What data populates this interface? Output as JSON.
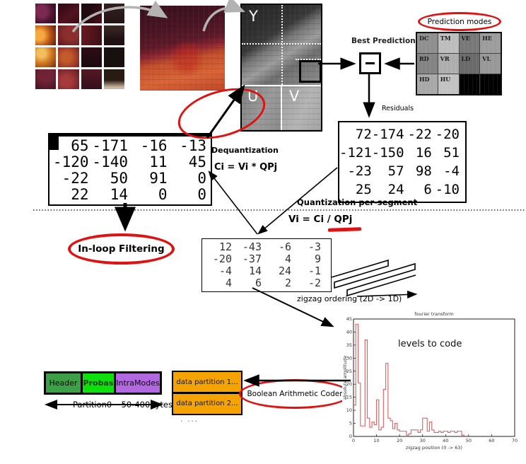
{
  "yuv": {
    "y_label": "Y",
    "u_label": "U",
    "v_label": "V"
  },
  "prediction": {
    "best_label": "Best Prediction???",
    "modes_title": "Prediction modes",
    "modes": [
      {
        "label": "DC",
        "shade": "#8f8f8f"
      },
      {
        "label": "TM",
        "shade": "#bdbdbd"
      },
      {
        "label": "VE",
        "shade": "#787878"
      },
      {
        "label": "HE",
        "shade": "#9c9c9c"
      },
      {
        "label": "RD",
        "shade": "#838383"
      },
      {
        "label": "VR",
        "shade": "#aeaeae"
      },
      {
        "label": "LD",
        "shade": "#6a6a6a"
      },
      {
        "label": "VL",
        "shade": "#989898"
      },
      {
        "label": "HD",
        "shade": "#a8a8a8"
      },
      {
        "label": "HU",
        "shade": "#c2c2c2"
      },
      {
        "label": "",
        "shade": "#000000"
      },
      {
        "label": "",
        "shade": "#000000"
      }
    ]
  },
  "residuals": {
    "label": "Residuals",
    "matrix": [
      [
        "72",
        "-174",
        "-22",
        "-20"
      ],
      [
        "-121",
        "-150",
        "16",
        "51"
      ],
      [
        "-23",
        "57",
        "98",
        "-4"
      ],
      [
        "25",
        "24",
        "6",
        "-10"
      ]
    ]
  },
  "reconstructed": {
    "matrix": [
      [
        "65",
        "-171",
        "-16",
        "-13"
      ],
      [
        "-120",
        "-140",
        "11",
        "45"
      ],
      [
        "-22",
        "50",
        "91",
        "0"
      ],
      [
        "22",
        "14",
        "0",
        "0"
      ]
    ]
  },
  "quantized": {
    "matrix": [
      [
        "12",
        "-43",
        "-6",
        "-3"
      ],
      [
        "-20",
        "-37",
        "4",
        "9"
      ],
      [
        "-4",
        "14",
        "24",
        "-1"
      ],
      [
        "4",
        "6",
        "2",
        "-2"
      ]
    ]
  },
  "dequantization": {
    "title": "Dequantization",
    "formula": "Ci = Vi * QPj"
  },
  "quantization": {
    "title": "Quantization per-segment",
    "formula_prefix": "Vi = Ci / ",
    "formula_qp": "QPj"
  },
  "inloop_label": "In-loop Filtering",
  "zigzag_label": "zigzag ordering  (2D -> 1D)",
  "bitstream": {
    "partition0_segments": [
      {
        "label": "Header",
        "color": "#3d9f47"
      },
      {
        "label": "Probas",
        "color": "#0ee00e"
      },
      {
        "label": "IntraModes",
        "color": "#b269e0"
      }
    ],
    "partition0_size": "Partition0 ~50-400bytes",
    "data_partitions": [
      "data partition 1...",
      "data partition 2..."
    ],
    "more_label": ". ...",
    "partition_color": "#f4a300",
    "coder_label": "Boolean Arithmetic Coder"
  },
  "accent_red": "#e01111",
  "chart_data": {
    "type": "line",
    "title": "fourier transform",
    "annotation": "levels to code",
    "xlabel": "zigzag position  (0 -> 63)",
    "ylabel": "absolute amplitude",
    "xlim": [
      0,
      70
    ],
    "ylim": [
      0,
      45
    ],
    "xticks": [
      0,
      10,
      20,
      30,
      40,
      50,
      60,
      70
    ],
    "yticks": [
      0,
      5,
      10,
      15,
      20,
      25,
      30,
      35,
      40,
      45
    ],
    "line_color": "#e06060",
    "x_unit_step": 1,
    "values": [
      12,
      43,
      20.5,
      4,
      4,
      37,
      7,
      3.5,
      5.5,
      4.5,
      14,
      2.5,
      3.5,
      18,
      28,
      7,
      6,
      3,
      5,
      2.5,
      2,
      2,
      2,
      0.5,
      1,
      2.5,
      2.5,
      2.5,
      1.5,
      2.5,
      7,
      7,
      2,
      5.5,
      2.5,
      1.5,
      1.5,
      2,
      1.5,
      2,
      2,
      1.5,
      2,
      2,
      1.5,
      2,
      2,
      0.5
    ],
    "legend": [],
    "grid": false
  }
}
